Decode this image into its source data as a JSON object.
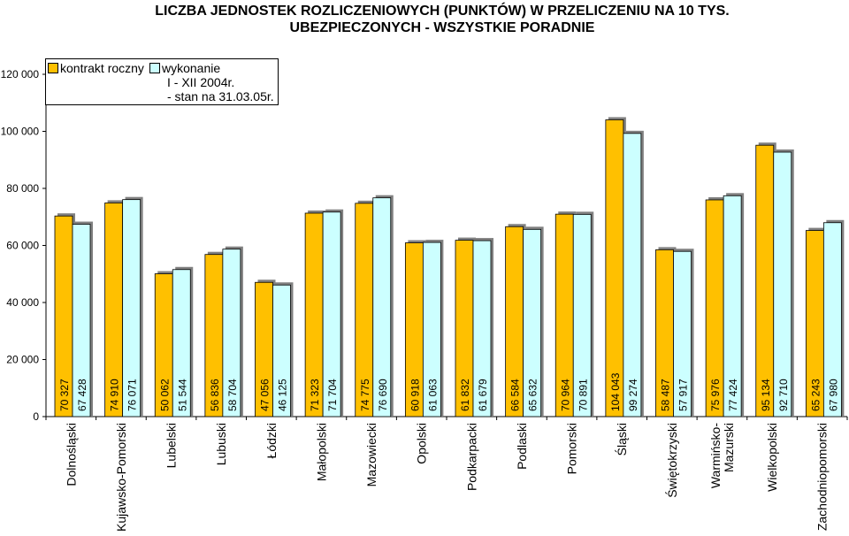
{
  "chart_data": {
    "type": "bar",
    "title": "LICZBA JEDNOSTEK ROZLICZENIOWYCH (PUNKTÓW) W PRZELICZENIU NA 10 TYS. UBEZPIECZONYCH - WSZYSTKIE PORADNIE",
    "title_lines": [
      "LICZBA JEDNOSTEK ROZLICZENIOWYCH (PUNKTÓW) W PRZELICZENIU NA 10 TYS.",
      "UBEZPIECZONYCH - WSZYSTKIE PORADNIE"
    ],
    "categories": [
      "Dolnośląski",
      "Kujawsko-Pomorski",
      "Lubelski",
      "Lubuski",
      "Łódzki",
      "Małopolski",
      "Mazowiecki",
      "Opolski",
      "Podkarpacki",
      "Podlaski",
      "Pomorski",
      "Śląski",
      "Świętokrzyski",
      "Warmińsko-\nMazurski",
      "Wielkopolski",
      "Zachodniopomorski"
    ],
    "series": [
      {
        "name": "kontrakt roczny",
        "color": "#FFC000",
        "values": [
          70327,
          74910,
          50062,
          56836,
          47056,
          71323,
          74775,
          60918,
          61832,
          66584,
          70964,
          104043,
          58487,
          75976,
          95134,
          65243
        ],
        "labels": [
          "70 327",
          "74 910",
          "50 062",
          "56 836",
          "47 056",
          "71 323",
          "74 775",
          "60 918",
          "61 832",
          "66 584",
          "70 964",
          "104 043",
          "58 487",
          "75 976",
          "95 134",
          "65 243"
        ]
      },
      {
        "name": "wykonanie I - XII 2004r. - stan na 31.03.05r.",
        "name_lines": [
          "wykonanie",
          "I - XII 2004r.",
          "- stan na 31.03.05r."
        ],
        "color": "#CCFFFF",
        "values": [
          67428,
          76071,
          51544,
          58704,
          46125,
          71704,
          76690,
          61063,
          61679,
          65632,
          70891,
          99274,
          57917,
          77424,
          92710,
          67980
        ],
        "labels": [
          "67 428",
          "76 071",
          "51 544",
          "58 704",
          "46 125",
          "71 704",
          "76 690",
          "61 063",
          "61 679",
          "65 632",
          "70 891",
          "99 274",
          "57 917",
          "77 424",
          "92 710",
          "67 980"
        ]
      }
    ],
    "yticks": [
      0,
      20000,
      40000,
      60000,
      80000,
      100000,
      120000
    ],
    "ytick_labels": [
      "0",
      "20 000",
      "40 000",
      "60 000",
      "80 000",
      "100 000",
      "120 000"
    ],
    "ylim": [
      0,
      120000
    ],
    "grid": false,
    "legend": "top-left",
    "xlabel": "",
    "ylabel": ""
  }
}
